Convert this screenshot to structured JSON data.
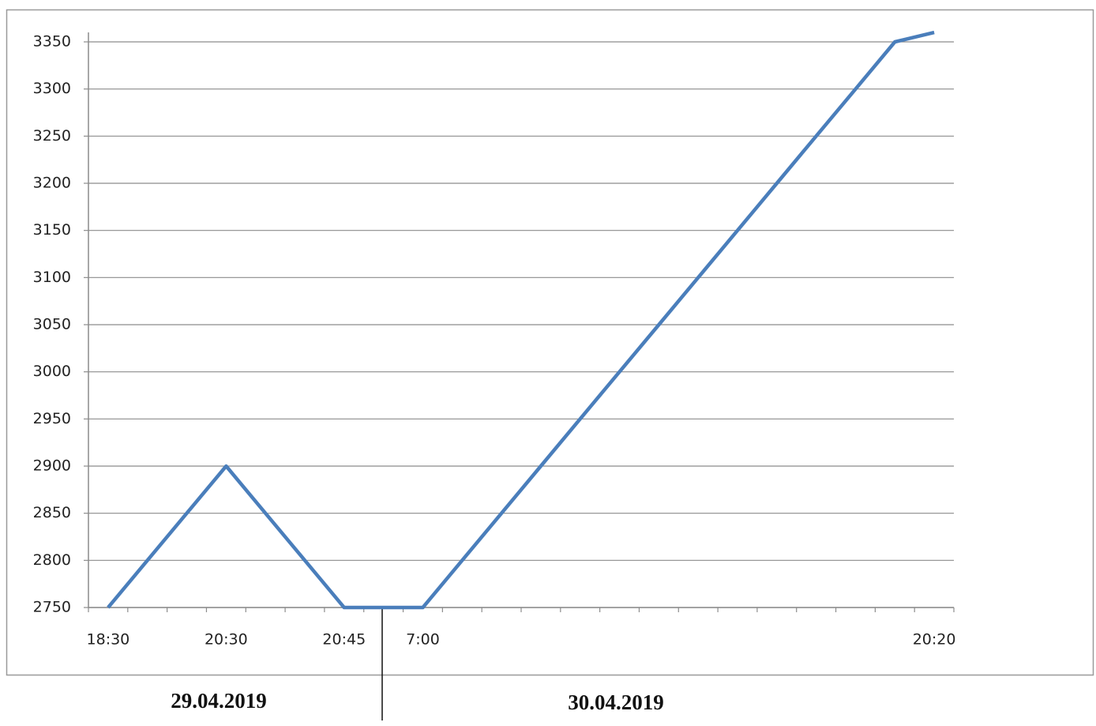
{
  "chart_data": {
    "type": "line",
    "categories": [
      "18:30",
      null,
      null,
      "20:30",
      null,
      null,
      "20:45",
      null,
      "7:00",
      null,
      null,
      null,
      null,
      null,
      null,
      null,
      null,
      null,
      null,
      null,
      null,
      "20:20"
    ],
    "values": [
      2750,
      2800,
      2850,
      2900,
      2850,
      2800,
      2750,
      2750,
      2750,
      2800,
      2850,
      2900,
      2950,
      3000,
      3050,
      3100,
      3150,
      3200,
      3250,
      3300,
      3350,
      3360
    ],
    "color": "#4a7ebb",
    "ylim": [
      2750,
      3350
    ],
    "yticks": [
      2750,
      2800,
      2850,
      2900,
      2950,
      3000,
      3050,
      3100,
      3150,
      3200,
      3250,
      3300,
      3350
    ],
    "grid": true,
    "annotations": [
      "29.04.2019",
      "30.04.2019"
    ]
  }
}
